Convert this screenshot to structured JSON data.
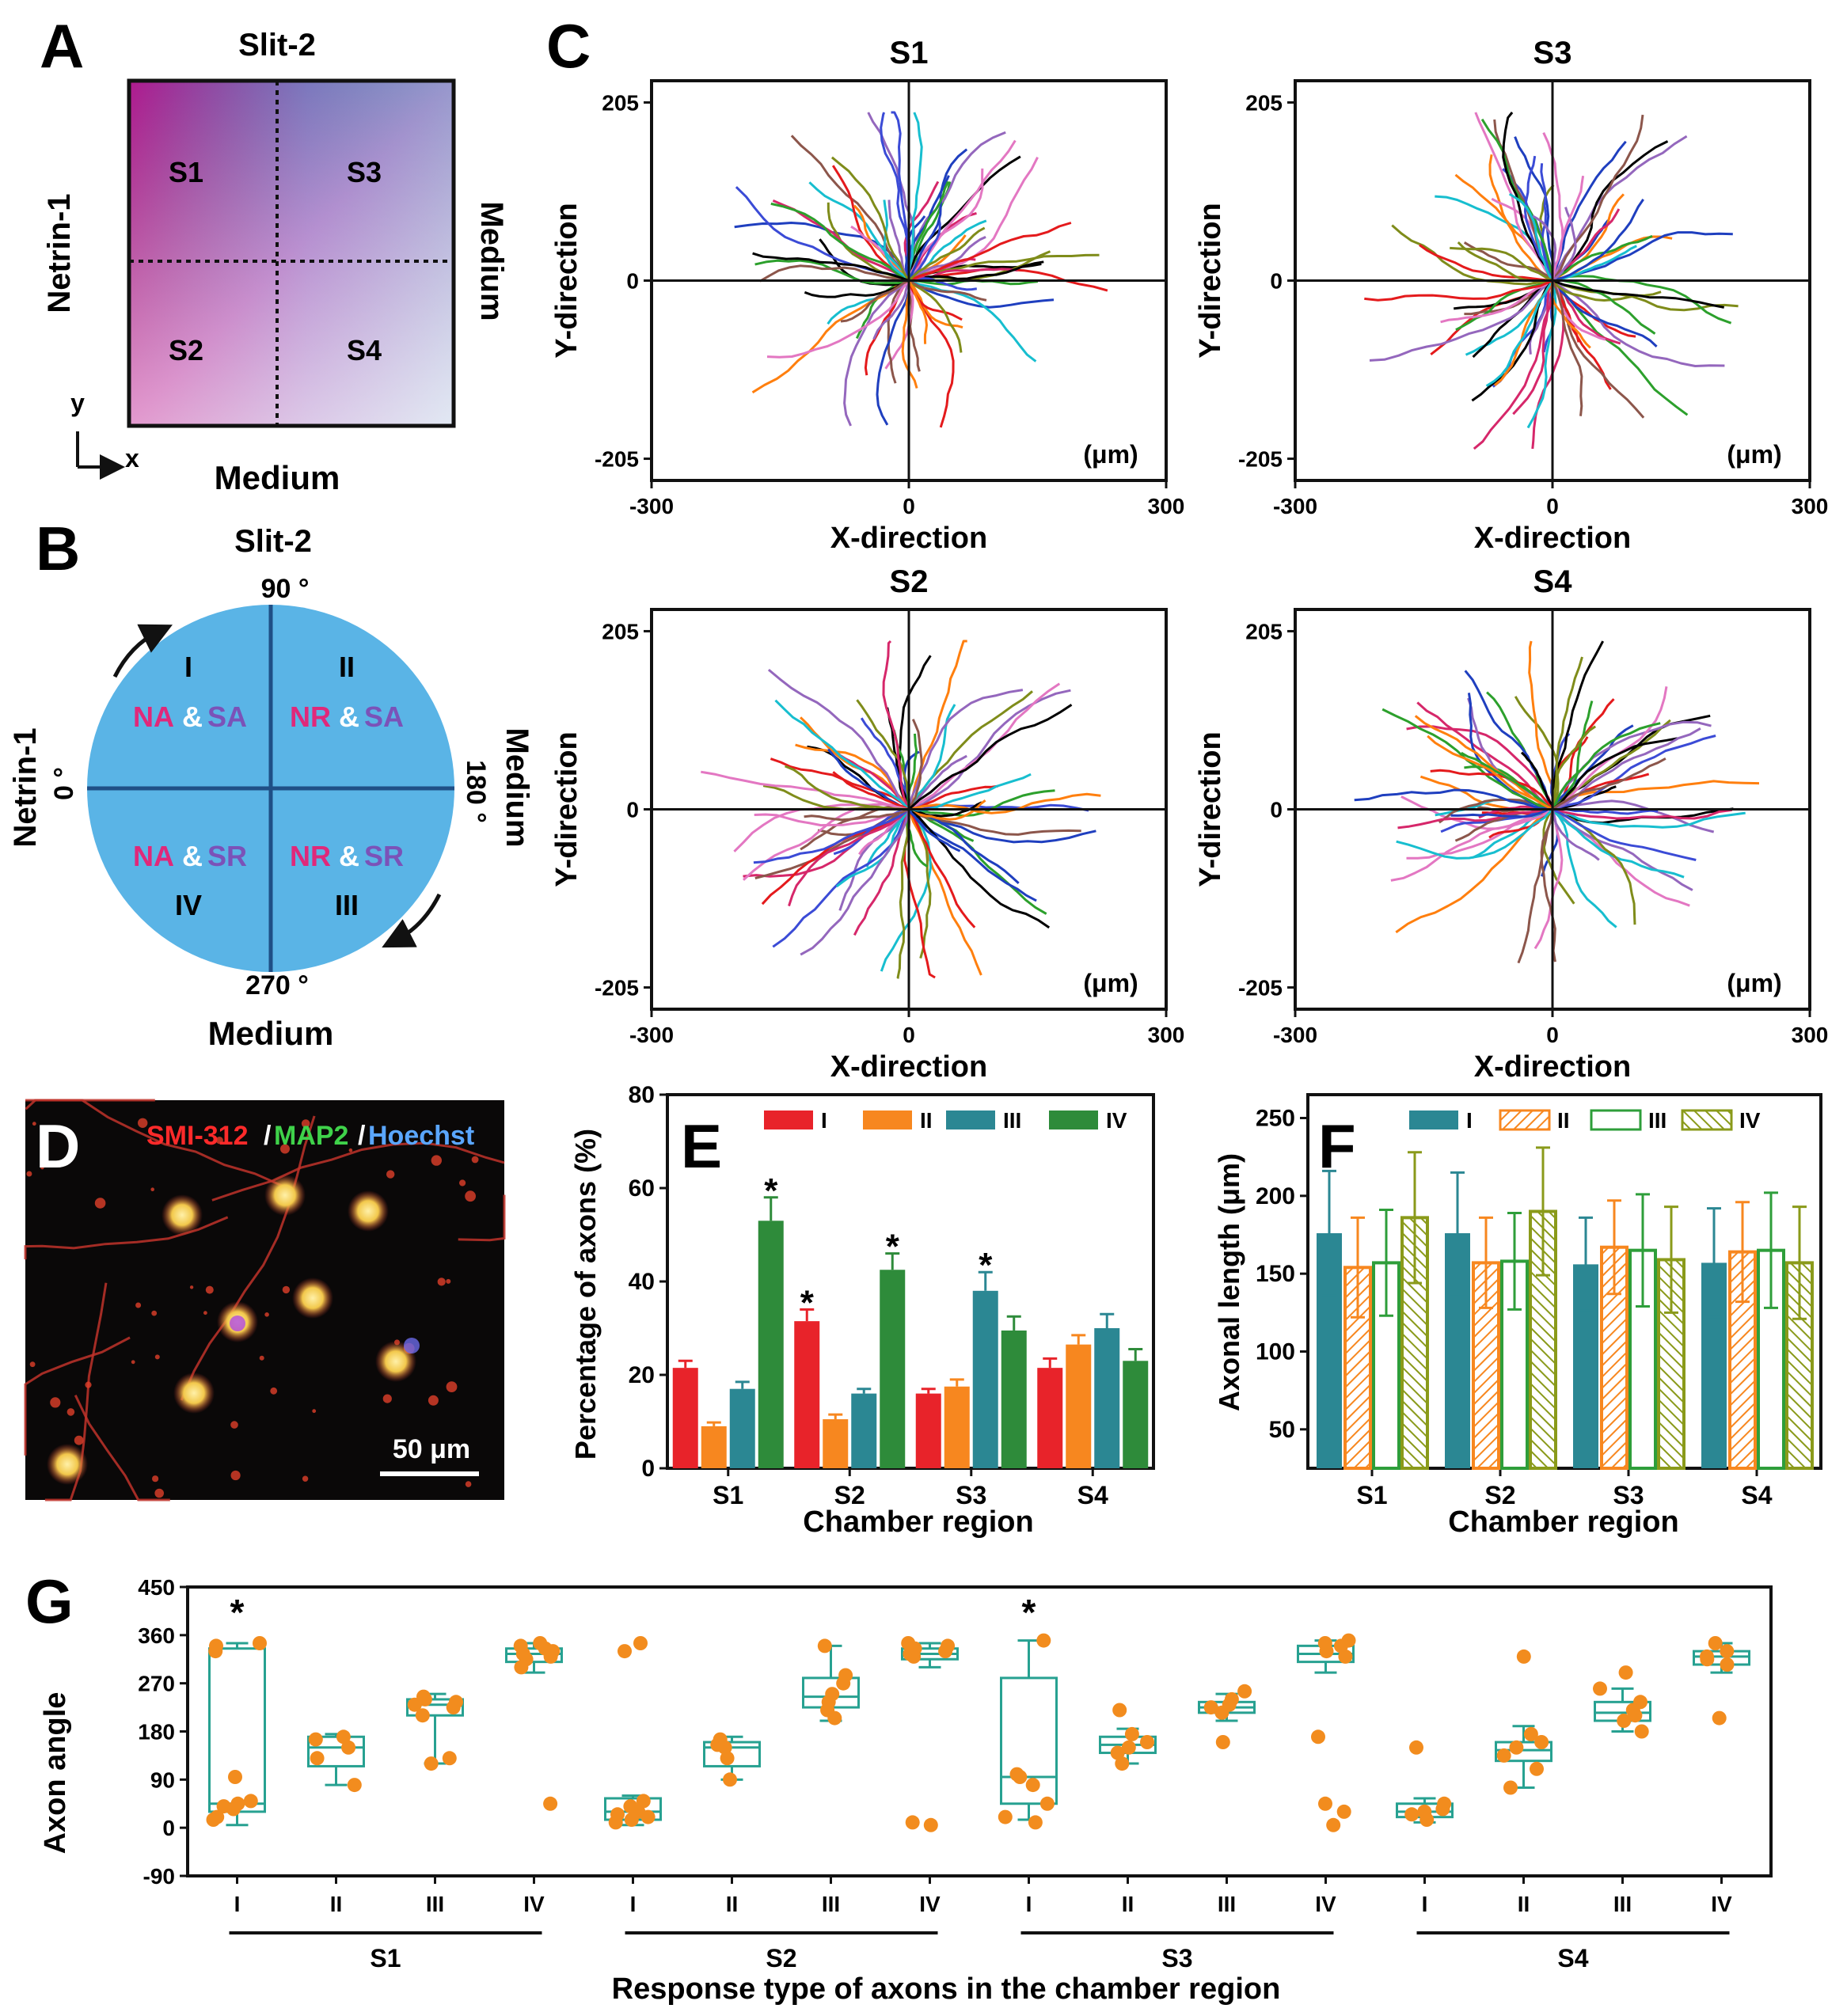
{
  "panel_labels": {
    "A": "A",
    "B": "B",
    "C": "C",
    "D": "D",
    "E": "E",
    "F": "F",
    "G": "G"
  },
  "panel_a": {
    "top": "Slit-2",
    "bottom": "Medium",
    "left": "Netrin-1",
    "right": "Medium",
    "quadrants": [
      "S1",
      "S3",
      "S2",
      "S4"
    ],
    "axis_y": "y",
    "axis_x": "x"
  },
  "panel_b": {
    "top": "Slit-2",
    "bottom": "Medium",
    "left": "Netrin-1",
    "right": "Medium",
    "deg_top": "90 °",
    "deg_left": "0 °",
    "deg_right": "180 °",
    "deg_bottom": "270 °",
    "roman": [
      "I",
      "II",
      "III",
      "IV"
    ],
    "tags": {
      "NA": "NA",
      "NR": "NR",
      "SA": "SA",
      "SR": "SR",
      "amp": "&"
    },
    "colors": {
      "circle": "#5ab4e6",
      "pink": "#e0287a",
      "purple": "#7b52b8",
      "line": "#1f4f86"
    }
  },
  "panel_c": {
    "titles": [
      "S1",
      "S3",
      "S2",
      "S4"
    ],
    "xlabel": "X-direction",
    "ylabel": "Y-direction",
    "unit": "(μm)",
    "xticks": [
      "-300",
      "0",
      "300"
    ],
    "yticks": [
      "205",
      "0",
      "-205"
    ],
    "xlim": [
      -300,
      300
    ],
    "ylim": [
      -205,
      205
    ],
    "trace_colors": [
      "#e41a1c",
      "#1f3fbf",
      "#2ca02c",
      "#ff7f0e",
      "#000000",
      "#9467bd",
      "#e377c2",
      "#17becf",
      "#8c564b",
      "#7f8c1a",
      "#d6276a",
      "#3b4bd6"
    ]
  },
  "panel_d": {
    "stain_red": "SMI-312",
    "stain_green": "MAP2",
    "stain_blue": "Hoechst",
    "slash": "/",
    "scale": "50 μm"
  },
  "chart_data": [
    {
      "type": "bar",
      "panel": "E",
      "categories": [
        "S1",
        "S2",
        "S3",
        "S4"
      ],
      "series": [
        {
          "name": "I",
          "values": [
            21.5,
            31.5,
            16,
            21.5
          ],
          "errors": [
            1.5,
            2.5,
            1,
            2
          ]
        },
        {
          "name": "II",
          "values": [
            9,
            10.5,
            17.5,
            26.5
          ],
          "errors": [
            0.8,
            1,
            1.5,
            2
          ]
        },
        {
          "name": "III",
          "values": [
            17,
            16,
            38,
            30
          ],
          "errors": [
            1.5,
            1,
            4,
            3
          ]
        },
        {
          "name": "IV",
          "values": [
            53,
            42.5,
            29.5,
            23
          ],
          "errors": [
            5,
            3.5,
            3,
            2.5
          ]
        }
      ],
      "colors": [
        "#e8232a",
        "#f7871f",
        "#2b8793",
        "#2e8b3a"
      ],
      "stars": [
        [
          0,
          3
        ],
        [
          1,
          0
        ],
        [
          1,
          3
        ],
        [
          2,
          2
        ]
      ],
      "star": "*",
      "xlabel": "Chamber region",
      "ylabel": "Percentage of axons (%)",
      "ylim": [
        0,
        80
      ],
      "yticks": [
        "0",
        "20",
        "40",
        "60",
        "80"
      ],
      "legend": "top"
    },
    {
      "type": "bar",
      "panel": "F",
      "categories": [
        "S1",
        "S2",
        "S3",
        "S4"
      ],
      "series": [
        {
          "name": "I",
          "values": [
            176,
            176,
            156,
            157
          ],
          "errors": [
            40,
            39,
            30,
            35
          ]
        },
        {
          "name": "II",
          "values": [
            154,
            157,
            167,
            164
          ],
          "errors": [
            32,
            29,
            30,
            32
          ]
        },
        {
          "name": "III",
          "values": [
            157,
            158,
            165,
            165
          ],
          "errors": [
            34,
            31,
            36,
            37
          ]
        },
        {
          "name": "IV",
          "values": [
            186,
            190,
            159,
            157
          ],
          "errors": [
            42,
            41,
            34,
            36
          ]
        }
      ],
      "colors": [
        "#2b8793",
        "#f7871f",
        "#2e9e3a",
        "#8a9a1a"
      ],
      "xlabel": "Chamber region",
      "ylabel": "Axonal length (μm)",
      "ylim": [
        25,
        265
      ],
      "yticks": [
        "50",
        "100",
        "150",
        "200",
        "250"
      ],
      "legend": "top"
    },
    {
      "type": "box",
      "panel": "G",
      "groups": [
        {
          "region": "S1",
          "type": "I",
          "box": [
            30,
            45,
            335
          ],
          "whisk": [
            5,
            345
          ]
        },
        {
          "region": "S1",
          "type": "II",
          "box": [
            115,
            150,
            170
          ],
          "whisk": [
            80,
            175
          ]
        },
        {
          "region": "S1",
          "type": "III",
          "box": [
            210,
            230,
            240
          ],
          "whisk": [
            120,
            250
          ]
        },
        {
          "region": "S1",
          "type": "IV",
          "box": [
            310,
            325,
            335
          ],
          "whisk": [
            290,
            345
          ]
        },
        {
          "region": "S2",
          "type": "I",
          "box": [
            15,
            30,
            55
          ],
          "whisk": [
            5,
            60
          ]
        },
        {
          "region": "S2",
          "type": "II",
          "box": [
            115,
            150,
            160
          ],
          "whisk": [
            90,
            170
          ]
        },
        {
          "region": "S2",
          "type": "III",
          "box": [
            225,
            245,
            280
          ],
          "whisk": [
            200,
            340
          ]
        },
        {
          "region": "S2",
          "type": "IV",
          "box": [
            315,
            325,
            335
          ],
          "whisk": [
            300,
            345
          ]
        },
        {
          "region": "S3",
          "type": "I",
          "box": [
            45,
            95,
            280
          ],
          "whisk": [
            15,
            350
          ]
        },
        {
          "region": "S3",
          "type": "II",
          "box": [
            140,
            155,
            170
          ],
          "whisk": [
            120,
            185
          ]
        },
        {
          "region": "S3",
          "type": "III",
          "box": [
            215,
            225,
            235
          ],
          "whisk": [
            200,
            250
          ]
        },
        {
          "region": "S3",
          "type": "IV",
          "box": [
            310,
            325,
            340
          ],
          "whisk": [
            290,
            350
          ]
        },
        {
          "region": "S4",
          "type": "I",
          "box": [
            20,
            30,
            45
          ],
          "whisk": [
            10,
            55
          ]
        },
        {
          "region": "S4",
          "type": "II",
          "box": [
            125,
            145,
            160
          ],
          "whisk": [
            75,
            190
          ]
        },
        {
          "region": "S4",
          "type": "III",
          "box": [
            200,
            215,
            235
          ],
          "whisk": [
            180,
            260
          ]
        },
        {
          "region": "S4",
          "type": "IV",
          "box": [
            305,
            320,
            330
          ],
          "whisk": [
            290,
            345
          ]
        }
      ],
      "points": [
        [
          15,
          20,
          35,
          40,
          45,
          50,
          95,
          330,
          340,
          345
        ],
        [
          80,
          130,
          150,
          165,
          170
        ],
        [
          120,
          130,
          210,
          225,
          230,
          235,
          240,
          245
        ],
        [
          45,
          300,
          315,
          320,
          325,
          330,
          335,
          340,
          345
        ],
        [
          10,
          15,
          20,
          25,
          30,
          40,
          50,
          330,
          345
        ],
        [
          90,
          130,
          150,
          155,
          165
        ],
        [
          205,
          220,
          235,
          250,
          270,
          285,
          340
        ],
        [
          5,
          10,
          320,
          325,
          330,
          335,
          340,
          345
        ],
        [
          10,
          20,
          45,
          80,
          95,
          100,
          350
        ],
        [
          120,
          140,
          150,
          160,
          175,
          220
        ],
        [
          160,
          215,
          225,
          230,
          240,
          255
        ],
        [
          5,
          30,
          45,
          170,
          320,
          330,
          340,
          345,
          350
        ],
        [
          15,
          25,
          30,
          35,
          45,
          150
        ],
        [
          75,
          110,
          135,
          150,
          160,
          175,
          320
        ],
        [
          180,
          200,
          210,
          220,
          235,
          260,
          290
        ],
        [
          205,
          305,
          315,
          320,
          330,
          345
        ]
      ],
      "stars": [
        0,
        8
      ],
      "star": "*",
      "xticklabels": [
        "I",
        "II",
        "III",
        "IV"
      ],
      "regions": [
        "S1",
        "S2",
        "S3",
        "S4"
      ],
      "ylabel": "Axon angle",
      "xlabel": "Response type of axons in the chamber region",
      "ylim": [
        -90,
        450
      ],
      "yticks": [
        "450",
        "360",
        "270",
        "180",
        "90",
        "0",
        "-90"
      ],
      "colors": {
        "box": "#27a191",
        "point": "#f28c1e"
      }
    }
  ]
}
